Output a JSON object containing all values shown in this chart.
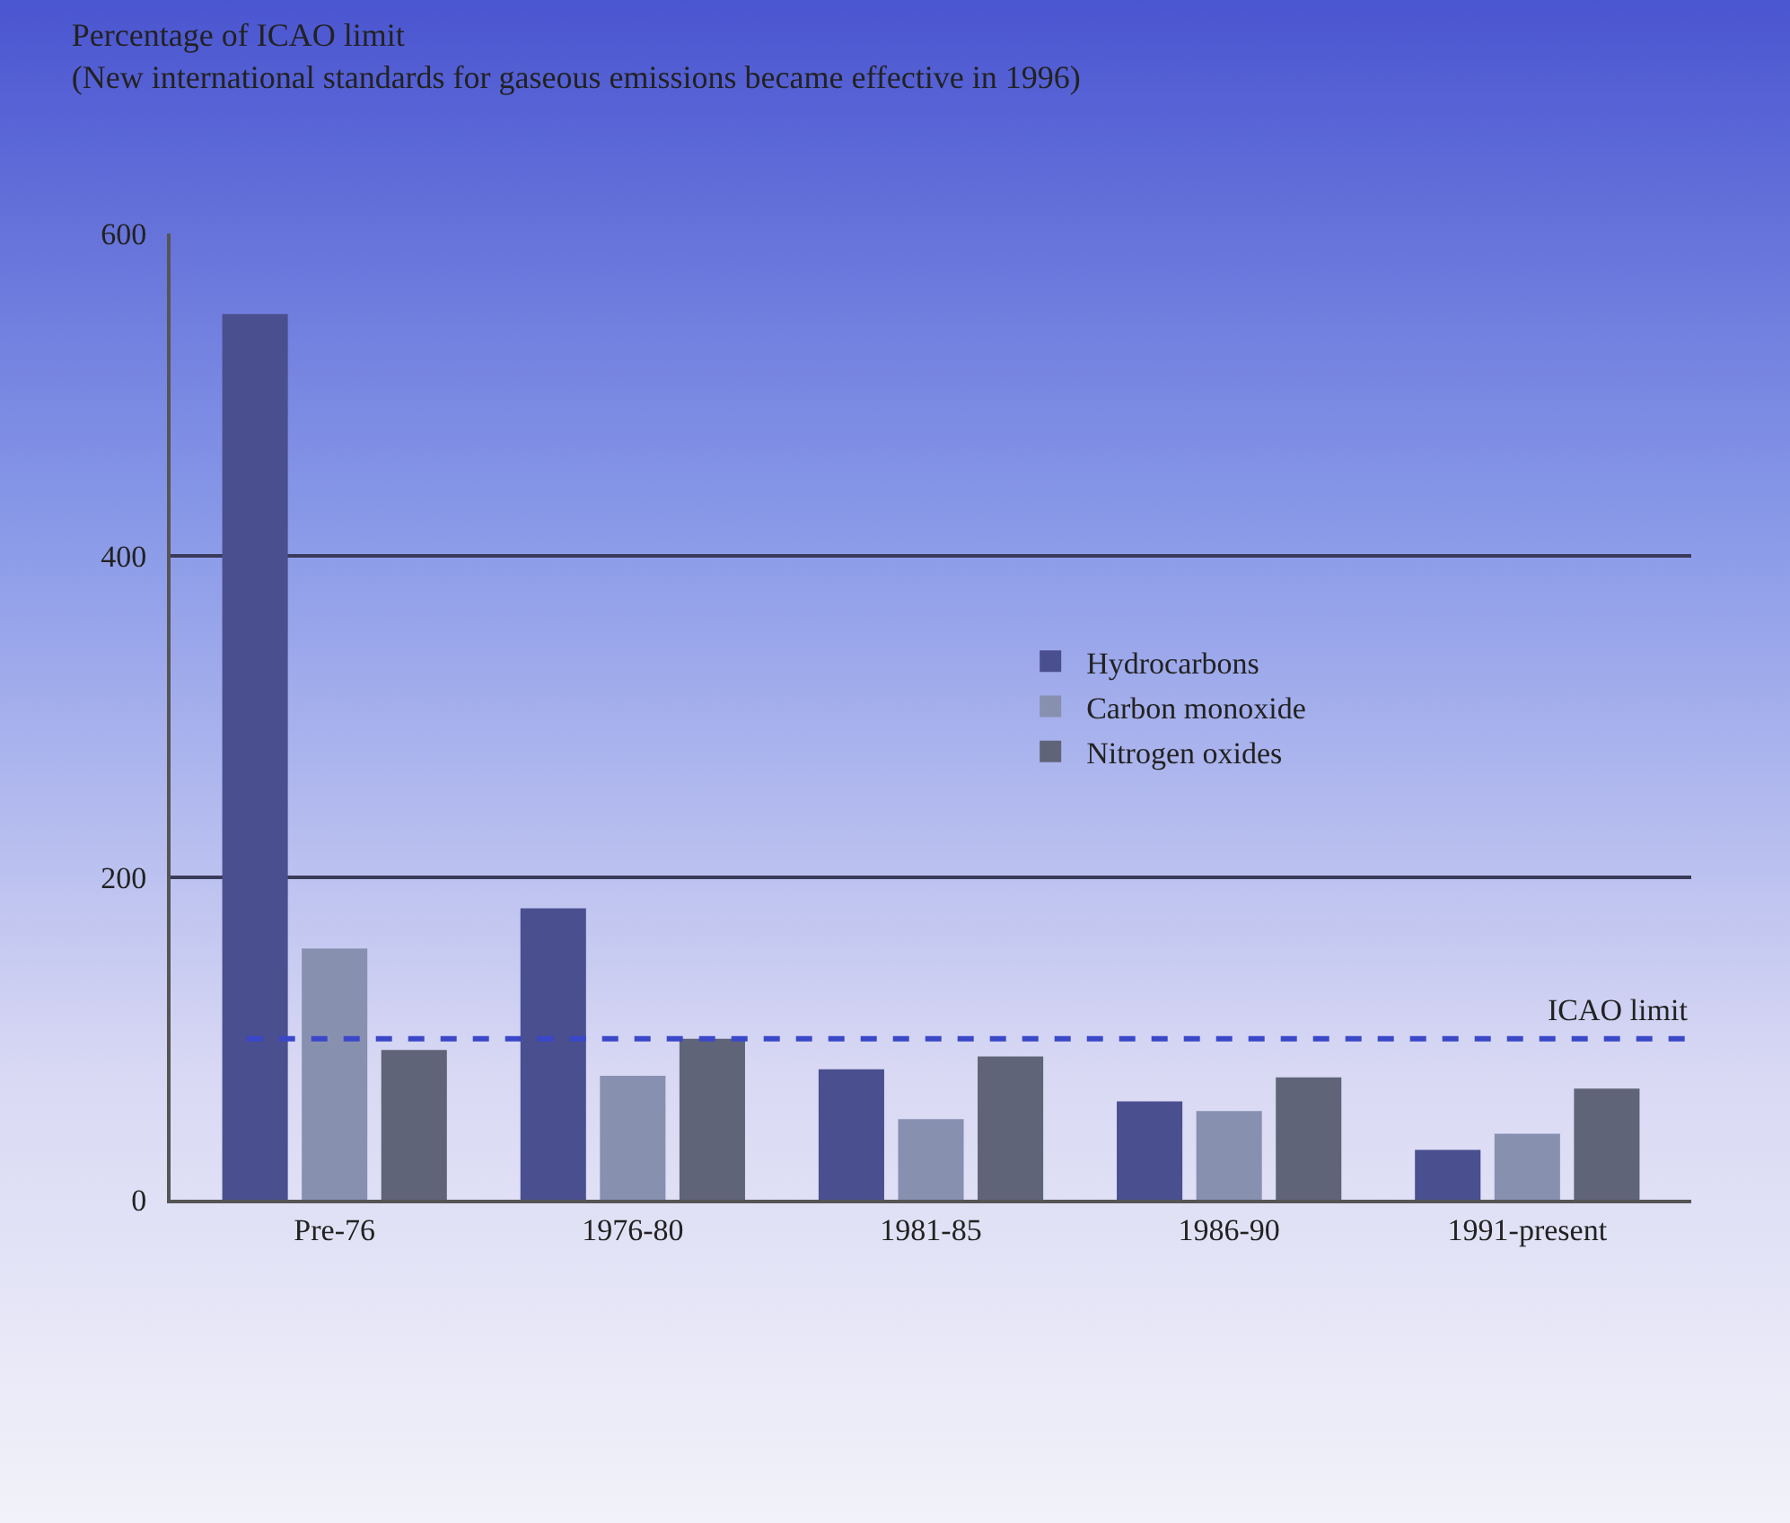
{
  "chart_data": {
    "type": "bar",
    "title": "Percentage of ICAO limit",
    "subtitle": "(New international standards for gaseous emissions became effective in 1996)",
    "categories": [
      "Pre-76",
      "1976-80",
      "1981-85",
      "1986-90",
      "1991-present"
    ],
    "series": [
      {
        "name": "Hydrocarbons",
        "color": "#4a4f8f",
        "values": [
          550,
          181,
          81,
          61,
          31
        ]
      },
      {
        "name": "Carbon monoxide",
        "color": "#8890b0",
        "values": [
          156,
          77,
          50,
          55,
          41
        ]
      },
      {
        "name": "Nitrogen oxides",
        "color": "#5f6478",
        "values": [
          93,
          100,
          89,
          76,
          69
        ]
      }
    ],
    "ylim": [
      0,
      600
    ],
    "yticks": [
      0,
      200,
      400,
      600
    ],
    "grid": "y",
    "legend": "right",
    "ref_lines": [
      {
        "axis": "y",
        "value": 100,
        "label": "ICAO limit",
        "color": "#3a48c8",
        "line_style": "dashed"
      }
    ]
  }
}
